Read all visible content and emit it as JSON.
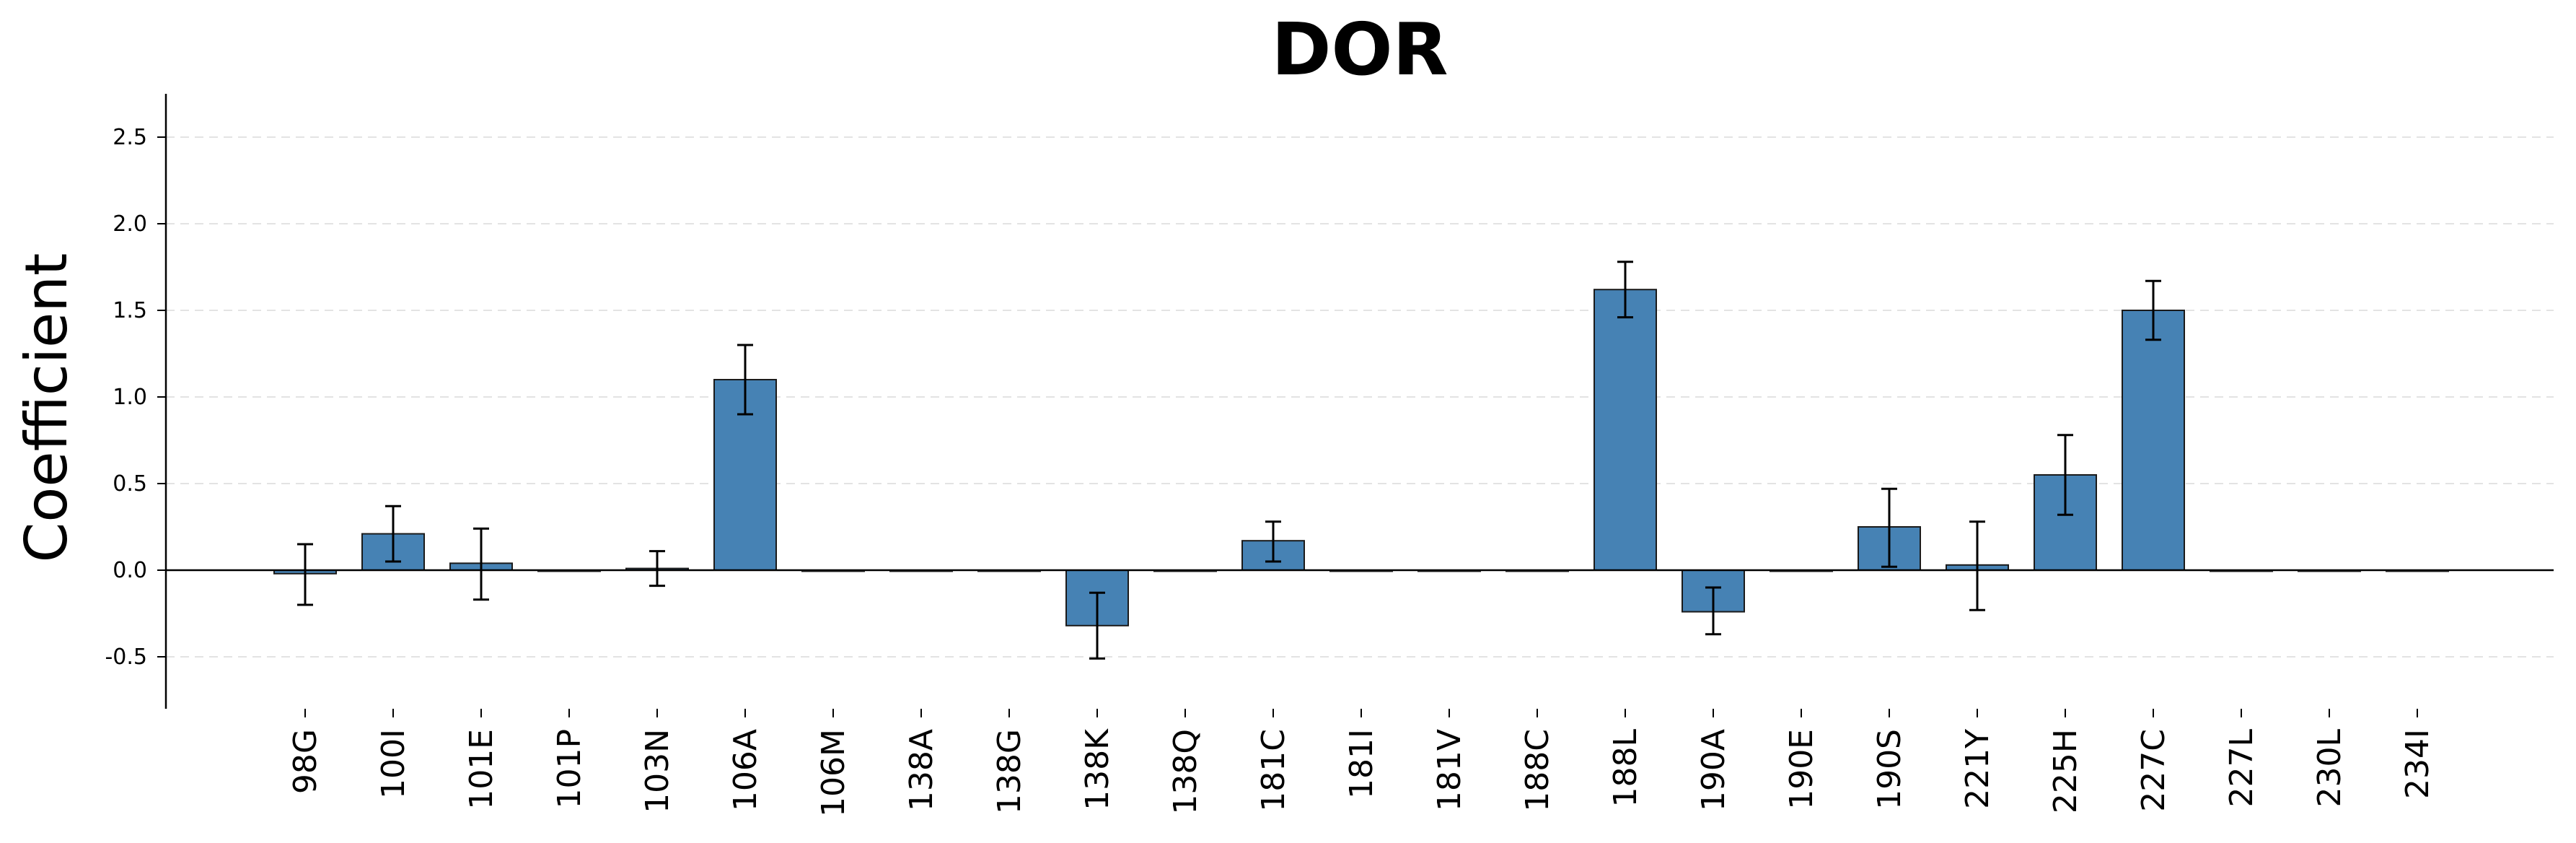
{
  "chart_data": {
    "type": "bar",
    "title": "DOR",
    "xlabel": "",
    "ylabel": "Coefficient",
    "ylim": [
      -0.8,
      2.75
    ],
    "yticks": [
      -0.5,
      0.0,
      0.5,
      1.0,
      1.5,
      2.0,
      2.5
    ],
    "ytick_labels": [
      "-0.5",
      "0.0",
      "0.5",
      "1.0",
      "1.5",
      "2.0",
      "2.5"
    ],
    "grid": "y-dashed",
    "bar_color": "#4682b4",
    "categories": [
      "98G",
      "100I",
      "101E",
      "101P",
      "103N",
      "106A",
      "106M",
      "138A",
      "138G",
      "138K",
      "138Q",
      "181C",
      "181I",
      "181V",
      "188C",
      "188L",
      "190A",
      "190E",
      "190S",
      "221Y",
      "225H",
      "227C",
      "227L",
      "230L",
      "234I"
    ],
    "values": [
      -0.02,
      0.21,
      0.04,
      0.0,
      0.01,
      1.1,
      0.0,
      0.0,
      0.0,
      -0.32,
      0.0,
      0.17,
      0.0,
      0.0,
      0.0,
      1.62,
      -0.24,
      0.0,
      0.25,
      0.03,
      0.55,
      1.5,
      0.0,
      0.0,
      0.0
    ],
    "error_low": [
      -0.2,
      0.05,
      -0.17,
      null,
      -0.09,
      0.9,
      null,
      null,
      null,
      -0.51,
      null,
      0.05,
      null,
      null,
      null,
      1.46,
      -0.37,
      null,
      0.02,
      -0.23,
      0.32,
      1.33,
      null,
      null,
      null
    ],
    "error_high": [
      0.15,
      0.37,
      0.24,
      null,
      0.11,
      1.3,
      null,
      null,
      null,
      -0.13,
      null,
      0.28,
      null,
      null,
      null,
      1.78,
      -0.1,
      null,
      0.47,
      0.28,
      0.78,
      1.67,
      null,
      null,
      null
    ]
  }
}
